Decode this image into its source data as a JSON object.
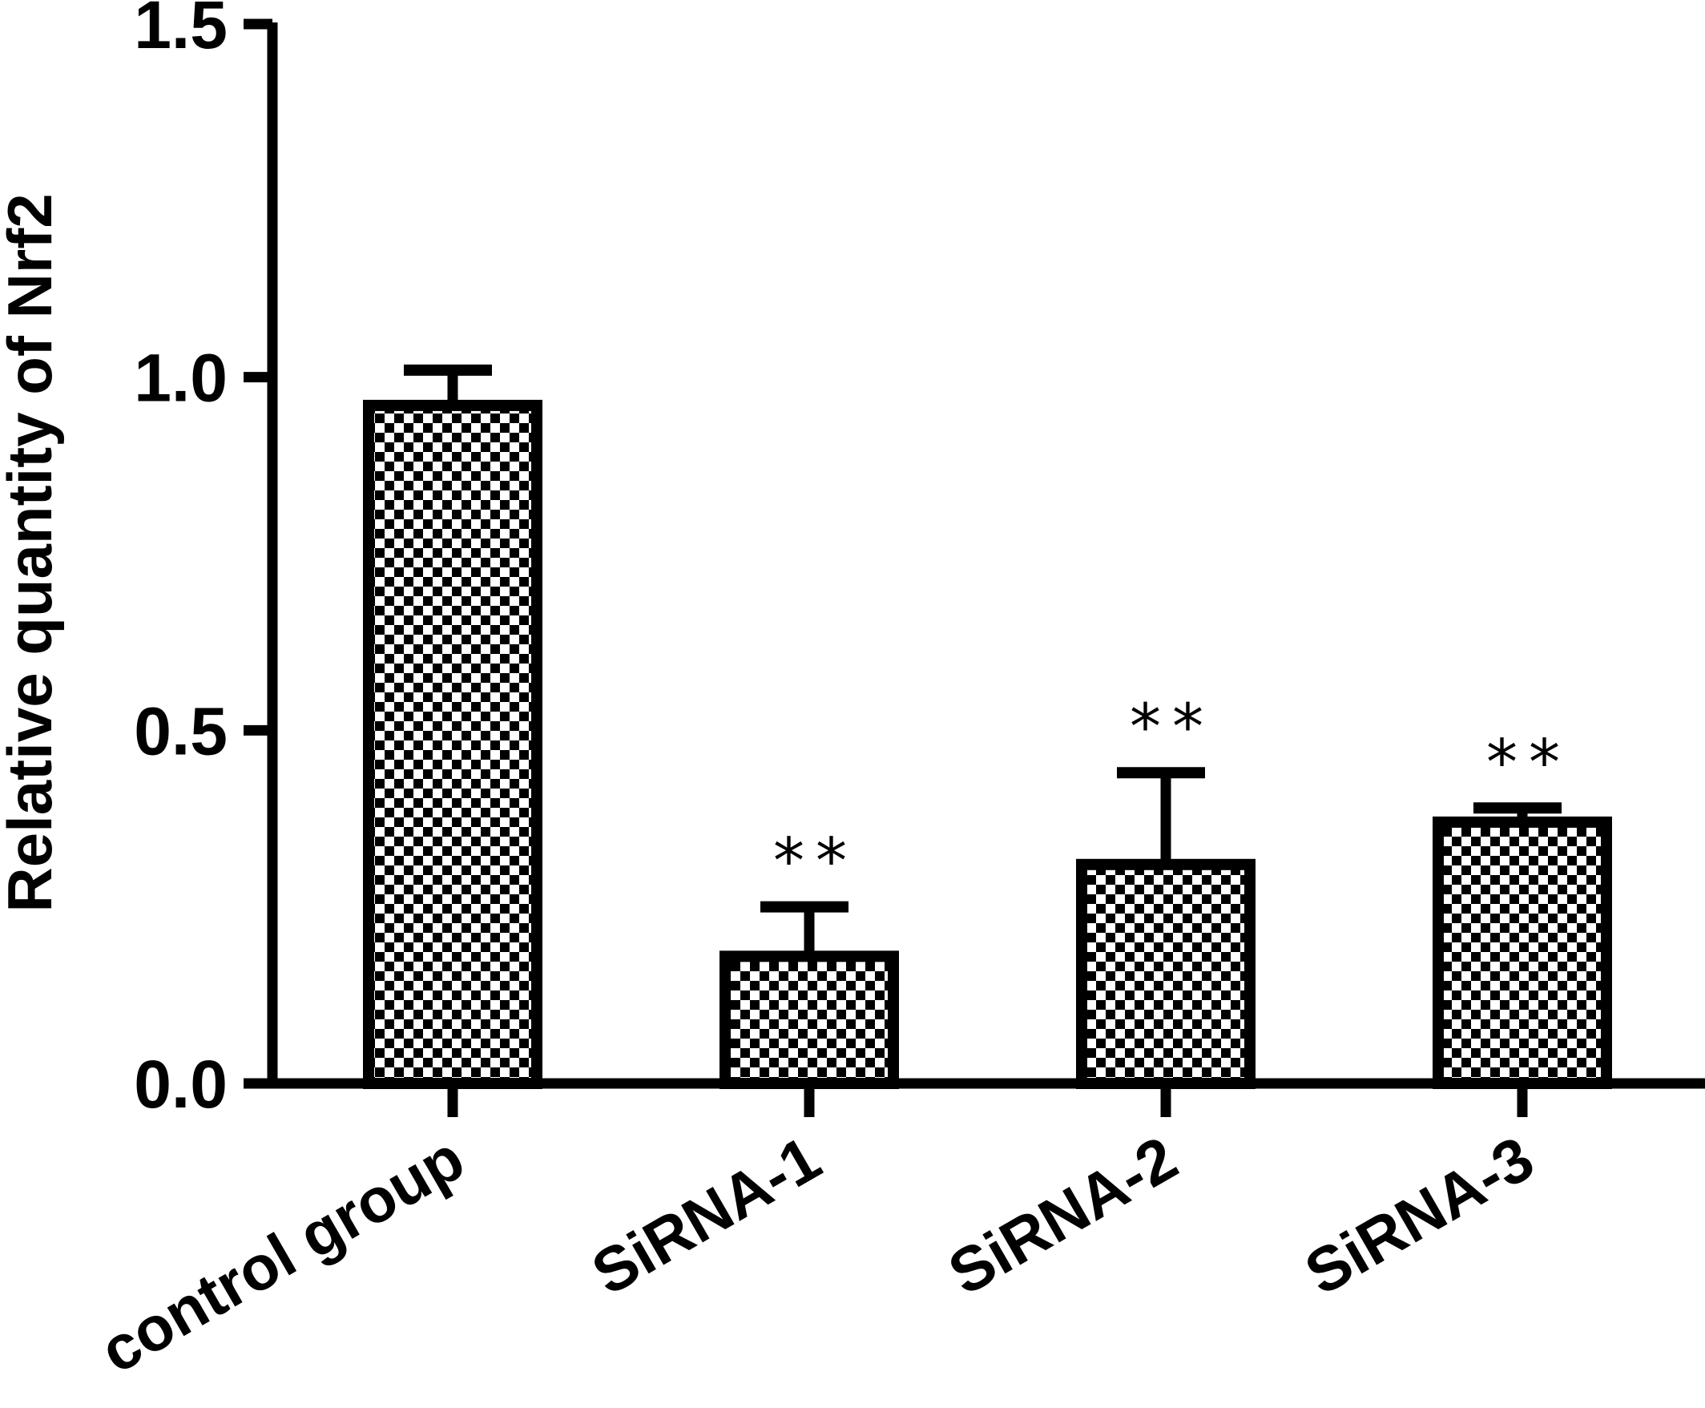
{
  "chart_data": {
    "type": "bar",
    "title": "",
    "xlabel": "",
    "ylabel": "Relative quantity of Nrf2",
    "ylim": [
      0,
      1.5
    ],
    "yticks": [
      "0.0",
      "0.5",
      "1.0",
      "1.5"
    ],
    "categories": [
      "control group",
      "SiRNA-1",
      "SiRNA-2",
      "SiRNA-3"
    ],
    "values": [
      0.96,
      0.18,
      0.31,
      0.37
    ],
    "errors": [
      0.05,
      0.07,
      0.13,
      0.02
    ],
    "significance": [
      "",
      "**",
      "**",
      "**"
    ],
    "grid": false,
    "bar_pattern": "checkerboard",
    "colors": {
      "bar_edge": "#000000",
      "pattern_dark": "#000000",
      "pattern_light": "#ffffff"
    }
  }
}
